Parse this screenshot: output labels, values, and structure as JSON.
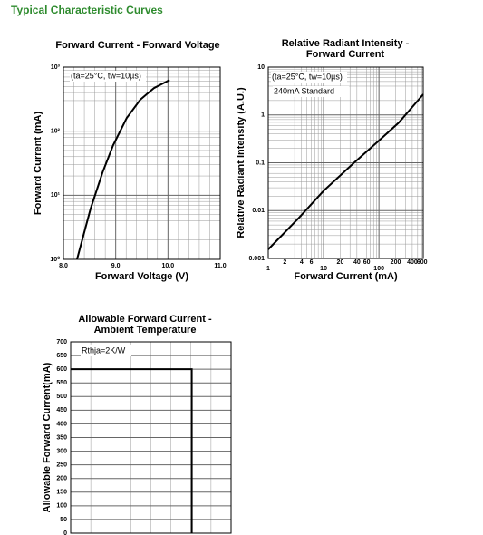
{
  "page_title": "Typical Characteristic Curves",
  "chart_data": [
    {
      "type": "line",
      "title": "Forward Current - Forward Voltage",
      "x_label": "Forward Voltage (V)",
      "y_label": "Forward Current (mA)",
      "annotations": [
        "(ta=25°C, tw=10µs)"
      ],
      "xlim": [
        8,
        11
      ],
      "xticks": [
        {
          "value": 8,
          "label": "8.0"
        },
        {
          "value": 9,
          "label": "9.0"
        },
        {
          "value": 10,
          "label": "10.0"
        },
        {
          "value": 11,
          "label": "11.0"
        }
      ],
      "ylim": [
        1,
        1000
      ],
      "y_log": true,
      "yticks": [
        {
          "value": 1,
          "label": "10⁰"
        },
        {
          "value": 10,
          "label": "10¹"
        },
        {
          "value": 100,
          "label": "10²"
        },
        {
          "value": 1000,
          "label": "10³"
        }
      ],
      "grid": true,
      "color": "#000000",
      "x": [
        8.26,
        8.52,
        8.75,
        8.95,
        9.21,
        9.47,
        9.73,
        10.03
      ],
      "values": [
        1,
        6.2,
        23,
        60,
        160,
        310,
        470,
        630
      ]
    },
    {
      "type": "line",
      "title": [
        "Relative Radiant Intensity -",
        "Forward Current"
      ],
      "x_label": "Forward Current (mA)",
      "y_label": "Relative Radiant Intensity (A.U.)",
      "annotations": [
        "(ta=25°C, tw=10µs)",
        "240mA Standard"
      ],
      "xlim": [
        1,
        631
      ],
      "x_log": true,
      "xticks": [
        1,
        10,
        100
      ],
      "xticks_minor": [
        2,
        4,
        6,
        20,
        40,
        60,
        200,
        400,
        600
      ],
      "ylim": [
        0.001,
        10
      ],
      "y_log": true,
      "yticks": [
        0.001,
        0.01,
        0.1,
        1,
        10
      ],
      "grid": true,
      "color": "#000000",
      "x": [
        1,
        3.6,
        10,
        34.8,
        100,
        228,
        631
      ],
      "values": [
        0.00155,
        0.0071,
        0.026,
        0.098,
        0.29,
        0.69,
        2.7
      ]
    },
    {
      "type": "step",
      "title": [
        "Allowable Forward Current -",
        "Ambient Temperature"
      ],
      "y_label": "Allowable Forward Current(mA)",
      "annotations": [
        "Rthja=2K/W"
      ],
      "ylim": [
        0,
        700
      ],
      "yticks": [
        0,
        50,
        100,
        150,
        200,
        250,
        300,
        350,
        400,
        450,
        500,
        550,
        600,
        650,
        700
      ],
      "grid": true,
      "color": "#000000",
      "values": [
        600,
        600,
        0
      ]
    }
  ]
}
